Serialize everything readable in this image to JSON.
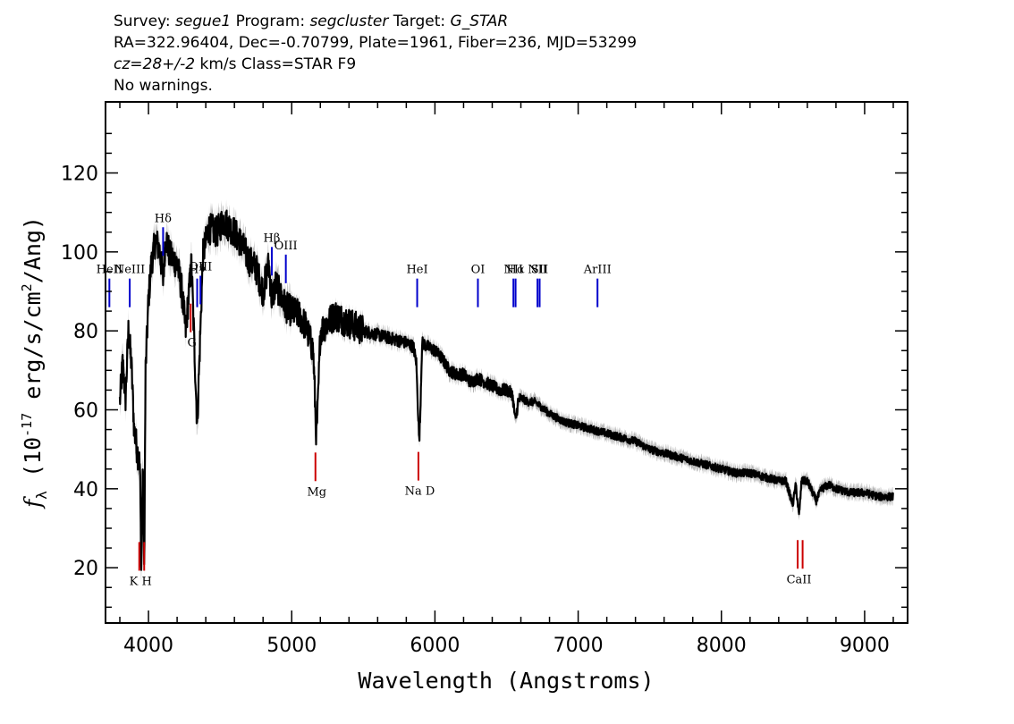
{
  "header": {
    "survey_label": "Survey: ",
    "survey": "segue1",
    "program_label": " Program: ",
    "program": "segcluster",
    "target_label": " Target: ",
    "target": "G_STAR",
    "line2": "RA=322.96404, Dec=-0.70799, Plate=1961, Fiber=236, MJD=53299",
    "redshift": "cz=28+/-2",
    "line3_rest": " km/s Class=STAR F9",
    "line4": "No warnings."
  },
  "chart_data": {
    "type": "line",
    "title": "",
    "xlabel": "Wavelength (Angstroms)",
    "ylabel": "f_λ (10^-17 erg/s/cm^2/Ang)",
    "xlim": [
      3700,
      9300
    ],
    "ylim": [
      6,
      138
    ],
    "x_ticks": [
      4000,
      5000,
      6000,
      7000,
      8000,
      9000
    ],
    "y_ticks": [
      20,
      40,
      60,
      80,
      100,
      120
    ],
    "colors": {
      "spectrum": "#000000",
      "error_band": "#b4b4b4",
      "emission": "#0000cc",
      "absorption": "#cc0000"
    },
    "series": [
      {
        "x": [
          3800,
          3820,
          3840,
          3860,
          3880,
          3900,
          3920,
          3940,
          3950,
          3960,
          3970,
          3980,
          4000,
          4020,
          4050,
          4080,
          4102,
          4120,
          4150,
          4200,
          4230,
          4260,
          4300,
          4340,
          4380,
          4420,
          4480,
          4520,
          4550,
          4600,
          4650,
          4700,
          4750,
          4800,
          4840,
          4861,
          4890,
          4920,
          4960,
          5000,
          5050,
          5100,
          5150,
          5172,
          5183,
          5200,
          5250,
          5300,
          5400,
          5500,
          5600,
          5700,
          5800,
          5850,
          5870,
          5890,
          5896,
          5910,
          5950,
          6000,
          6050,
          6100,
          6150,
          6200,
          6250,
          6300,
          6350,
          6400,
          6450,
          6500,
          6540,
          6563,
          6580,
          6600,
          6650,
          6700,
          6800,
          6900,
          7000,
          7100,
          7200,
          7300,
          7400,
          7500,
          7600,
          7700,
          7800,
          7900,
          8000,
          8100,
          8200,
          8300,
          8400,
          8450,
          8498,
          8520,
          8542,
          8560,
          8600,
          8662,
          8700,
          8750,
          8800,
          8900,
          9000,
          9100,
          9200
        ],
        "values": [
          62,
          72,
          63,
          80,
          72,
          55,
          50,
          46,
          19,
          45,
          20,
          70,
          88,
          97,
          103,
          100,
          93,
          104,
          99,
          97,
          91,
          80,
          97,
          56,
          99,
          106,
          105,
          108,
          107,
          105,
          102,
          98,
          96,
          90,
          97,
          88,
          92,
          89,
          86,
          85,
          84,
          81,
          75,
          53,
          61,
          80,
          82,
          84,
          82,
          80,
          79,
          78,
          77,
          76,
          72,
          52,
          57,
          77,
          76,
          75,
          73,
          70,
          69,
          69,
          67,
          68,
          67,
          66,
          65,
          65,
          64,
          57,
          62,
          63,
          62,
          62,
          59,
          57,
          56,
          55,
          54,
          53,
          52,
          50,
          49,
          48,
          47,
          46,
          45,
          44,
          44,
          43,
          42,
          42,
          36,
          41,
          33,
          42,
          42,
          37,
          40,
          41,
          40,
          39,
          39,
          38,
          38
        ]
      }
    ],
    "line_markers": [
      {
        "label": "HeII",
        "x": 3727,
        "kind": "emission"
      },
      {
        "label": "NeIII",
        "x": 3869,
        "kind": "emission"
      },
      {
        "label": "Hδ",
        "x": 4102,
        "kind": "emission"
      },
      {
        "label": "Hγ",
        "x": 4340,
        "kind": "emission"
      },
      {
        "label": "OIII",
        "x": 4363,
        "kind": "emission"
      },
      {
        "label": "Hβ",
        "x": 4861,
        "kind": "emission"
      },
      {
        "label": "OIII",
        "x": 4959,
        "kind": "emission"
      },
      {
        "label": "HeI",
        "x": 5876,
        "kind": "emission"
      },
      {
        "label": "OI",
        "x": 6300,
        "kind": "emission"
      },
      {
        "label": "NII",
        "x": 6548,
        "kind": "emission"
      },
      {
        "label": "Hα",
        "x": 6563,
        "kind": "emission"
      },
      {
        "label": "NII",
        "x": 6716,
        "kind": "emission"
      },
      {
        "label": "SII",
        "x": 6731,
        "kind": "emission"
      },
      {
        "label": "ArIII",
        "x": 7135,
        "kind": "emission"
      },
      {
        "label": "K H",
        "x": 3945,
        "kind": "absorption"
      },
      {
        "label": "G",
        "x": 4304,
        "kind": "absorption"
      },
      {
        "label": "Mg",
        "x": 5175,
        "kind": "absorption"
      },
      {
        "label": "Na D",
        "x": 5894,
        "kind": "absorption"
      },
      {
        "label": "CaII",
        "x": 8542,
        "kind": "absorption"
      }
    ]
  }
}
